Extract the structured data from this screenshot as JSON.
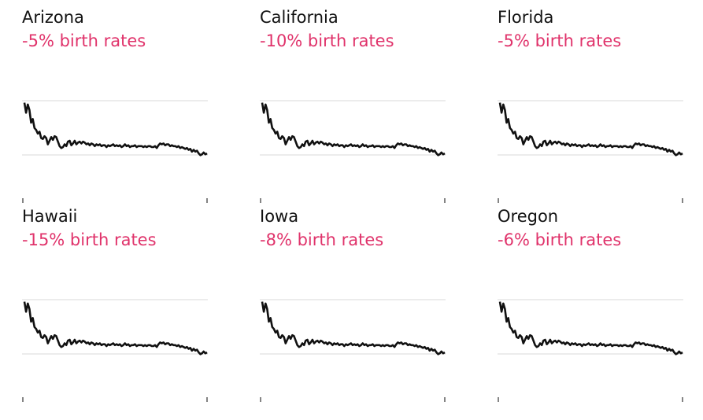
{
  "colors": {
    "accent": "#e0336b",
    "line": "#111111",
    "grid": "#d9d9d9",
    "tick": "#333333"
  },
  "chart_data": [
    {
      "type": "line",
      "title": "Arizona",
      "subtitle": "-5% birth rates",
      "xlabel": "",
      "ylabel": "",
      "grid": true,
      "axis_labels": "none",
      "series": [
        {
          "values": []
        }
      ]
    },
    {
      "type": "line",
      "title": "California",
      "subtitle": "-10% birth rates",
      "xlabel": "",
      "ylabel": "",
      "grid": true,
      "axis_labels": "none",
      "series": [
        {
          "values": []
        }
      ]
    },
    {
      "type": "line",
      "title": "Florida",
      "subtitle": "-5% birth rates",
      "xlabel": "",
      "ylabel": "",
      "grid": true,
      "axis_labels": "none",
      "series": [
        {
          "values": []
        }
      ]
    },
    {
      "type": "line",
      "title": "Hawaii",
      "subtitle": "-15% birth rates",
      "xlabel": "",
      "ylabel": "",
      "grid": true,
      "axis_labels": "none",
      "series": [
        {
          "values": []
        }
      ]
    },
    {
      "type": "line",
      "title": "Iowa",
      "subtitle": "-8% birth rates",
      "xlabel": "",
      "ylabel": "",
      "grid": true,
      "axis_labels": "none",
      "series": [
        {
          "values": []
        }
      ]
    },
    {
      "type": "line",
      "title": "Oregon",
      "subtitle": "-6% birth rates",
      "xlabel": "",
      "ylabel": "",
      "grid": true,
      "axis_labels": "none",
      "series": [
        {
          "values": []
        }
      ]
    }
  ],
  "line_shape": [
    2.45,
    1.9,
    2.35,
    2.05,
    1.35,
    1.55,
    1.05,
    0.95,
    0.75,
    0.85,
    0.5,
    0.45,
    0.6,
    0.5,
    0.15,
    0.35,
    0.55,
    0.4,
    0.6,
    0.55,
    0.3,
    0.05,
    -0.05,
    0.0,
    0.15,
    0.05,
    0.3,
    0.35,
    0.1,
    0.2,
    0.35,
    0.15,
    0.25,
    0.3,
    0.2,
    0.3,
    0.25,
    0.15,
    0.2,
    0.1,
    0.2,
    0.15,
    0.05,
    0.15,
    0.1,
    0.15,
    0.05,
    0.1,
    0.1,
    0.0,
    0.1,
    0.05,
    0.1,
    0.15,
    0.05,
    0.1,
    0.05,
    0.1,
    0.0,
    0.05,
    0.15,
    0.05,
    0.1,
    0.0,
    0.05,
    0.05,
    0.1,
    0.0,
    0.05,
    0.05,
    0.05,
    0.0,
    0.05,
    0.0,
    0.05,
    0.05,
    0.0,
    0.0,
    0.05,
    -0.05,
    0.1,
    0.2,
    0.15,
    0.2,
    0.1,
    0.15,
    0.15,
    0.05,
    0.1,
    0.05,
    0.05,
    0.0,
    0.05,
    -0.05,
    0.0,
    -0.05,
    -0.1,
    -0.05,
    -0.15,
    -0.1,
    -0.25,
    -0.15,
    -0.25,
    -0.2,
    -0.35,
    -0.45,
    -0.4,
    -0.3,
    -0.4,
    -0.35
  ]
}
